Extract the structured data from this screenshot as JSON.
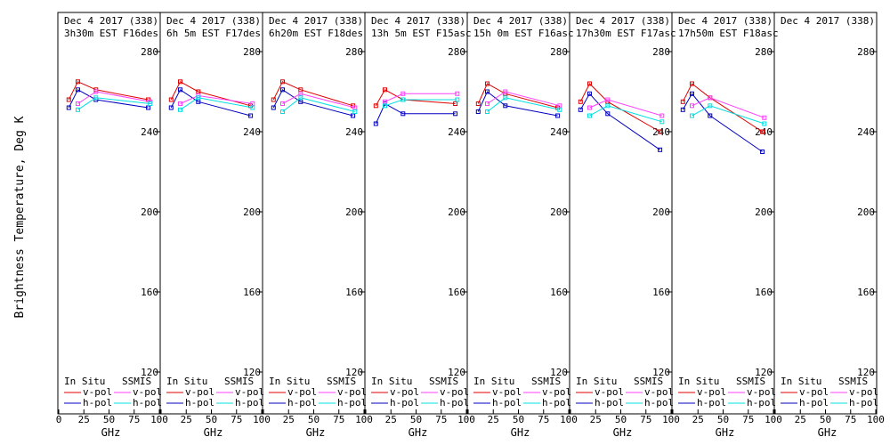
{
  "chart_data": {
    "type": "line",
    "ylabel": "Brightness Temperature, Deg K",
    "xlabel": "GHz",
    "xlim": [
      0,
      100
    ],
    "ylim": [
      110,
      290
    ],
    "yticks": [
      120,
      160,
      200,
      240,
      280
    ],
    "xticks_first": [
      "0",
      "25",
      "50",
      "75",
      "100"
    ],
    "xticks_other": [
      "25",
      "50",
      "75",
      "100"
    ],
    "legend": {
      "insitu_label": "In Situ",
      "ssmis_label": "SSMIS",
      "vpol_label": "v-pol",
      "hpol_label": "h-pol"
    },
    "colors": {
      "insitu_v": "#e00000",
      "insitu_h": "#0000c0",
      "ssmis_v": "#ff40ff",
      "ssmis_h": "#00e0e0",
      "frame": "#000000",
      "text": "#000000"
    },
    "panels": [
      {
        "date": "Dec 4 2017 (338)",
        "time": "3h30m EST F16des",
        "series": [
          {
            "role": "insitu_v",
            "x": [
              10,
              19,
              37,
              89
            ],
            "y": [
              256,
              265,
              261,
              256
            ]
          },
          {
            "role": "insitu_h",
            "x": [
              10,
              19,
              37,
              89
            ],
            "y": [
              252,
              261,
              256,
              252
            ]
          },
          {
            "role": "ssmis_v",
            "x": [
              19,
              37,
              91
            ],
            "y": [
              254,
              260,
              255
            ]
          },
          {
            "role": "ssmis_h",
            "x": [
              19,
              37,
              91
            ],
            "y": [
              251,
              257,
              254
            ]
          }
        ]
      },
      {
        "date": "Dec 4 2017 (338)",
        "time": "6h 5m EST F17des",
        "series": [
          {
            "role": "insitu_v",
            "x": [
              10,
              19,
              37,
              89
            ],
            "y": [
              256,
              265,
              260,
              253
            ]
          },
          {
            "role": "insitu_h",
            "x": [
              10,
              19,
              37,
              89
            ],
            "y": [
              252,
              261,
              255,
              248
            ]
          },
          {
            "role": "ssmis_v",
            "x": [
              19,
              37,
              91
            ],
            "y": [
              254,
              258,
              254
            ]
          },
          {
            "role": "ssmis_h",
            "x": [
              19,
              37,
              91
            ],
            "y": [
              251,
              257,
              252
            ]
          }
        ]
      },
      {
        "date": "Dec 4 2017 (338)",
        "time": "6h20m EST F18des",
        "series": [
          {
            "role": "insitu_v",
            "x": [
              10,
              19,
              37,
              89
            ],
            "y": [
              256,
              265,
              261,
              253
            ]
          },
          {
            "role": "insitu_h",
            "x": [
              10,
              19,
              37,
              89
            ],
            "y": [
              252,
              261,
              255,
              248
            ]
          },
          {
            "role": "ssmis_v",
            "x": [
              19,
              37,
              91
            ],
            "y": [
              254,
              259,
              252
            ]
          },
          {
            "role": "ssmis_h",
            "x": [
              19,
              37,
              91
            ],
            "y": [
              250,
              257,
              250
            ]
          }
        ]
      },
      {
        "date": "Dec 4 2017 (338)",
        "time": "13h 5m EST F15asc",
        "series": [
          {
            "role": "insitu_v",
            "x": [
              10,
              19,
              37,
              89
            ],
            "y": [
              253,
              261,
              256,
              254
            ]
          },
          {
            "role": "insitu_h",
            "x": [
              10,
              19,
              37,
              89
            ],
            "y": [
              244,
              254,
              249,
              249
            ]
          },
          {
            "role": "ssmis_v",
            "x": [
              19,
              37,
              91
            ],
            "y": [
              255,
              259,
              259
            ]
          },
          {
            "role": "ssmis_h",
            "x": [
              19,
              37,
              91
            ],
            "y": [
              253,
              256,
              256
            ]
          }
        ]
      },
      {
        "date": "Dec 4 2017 (338)",
        "time": "15h 0m EST F16asc",
        "series": [
          {
            "role": "insitu_v",
            "x": [
              10,
              19,
              37,
              89
            ],
            "y": [
              254,
              264,
              259,
              252
            ]
          },
          {
            "role": "insitu_h",
            "x": [
              10,
              19,
              37,
              89
            ],
            "y": [
              250,
              260,
              253,
              248
            ]
          },
          {
            "role": "ssmis_v",
            "x": [
              19,
              37,
              91
            ],
            "y": [
              254,
              260,
              253
            ]
          },
          {
            "role": "ssmis_h",
            "x": [
              19,
              37,
              91
            ],
            "y": [
              250,
              257,
              251
            ]
          }
        ]
      },
      {
        "date": "Dec 4 2017 (338)",
        "time": "17h30m EST F17asc",
        "series": [
          {
            "role": "insitu_v",
            "x": [
              10,
              19,
              37,
              89
            ],
            "y": [
              255,
              264,
              255,
              240
            ]
          },
          {
            "role": "insitu_h",
            "x": [
              10,
              19,
              37,
              89
            ],
            "y": [
              251,
              259,
              249,
              231
            ]
          },
          {
            "role": "ssmis_v",
            "x": [
              19,
              37,
              91
            ],
            "y": [
              252,
              256,
              248
            ]
          },
          {
            "role": "ssmis_h",
            "x": [
              19,
              37,
              91
            ],
            "y": [
              248,
              253,
              245
            ]
          }
        ]
      },
      {
        "date": "Dec 4 2017 (338)",
        "time": "17h50m EST F18asc",
        "series": [
          {
            "role": "insitu_v",
            "x": [
              10,
              19,
              37,
              89
            ],
            "y": [
              255,
              264,
              257,
              240
            ]
          },
          {
            "role": "insitu_h",
            "x": [
              10,
              19,
              37,
              89
            ],
            "y": [
              251,
              259,
              248,
              230
            ]
          },
          {
            "role": "ssmis_v",
            "x": [
              19,
              37,
              91
            ],
            "y": [
              253,
              257,
              247
            ]
          },
          {
            "role": "ssmis_h",
            "x": [
              19,
              37,
              91
            ],
            "y": [
              248,
              253,
              244
            ]
          }
        ]
      },
      {
        "date": "Dec 4 2017 (338)",
        "time": "",
        "series": []
      }
    ]
  }
}
